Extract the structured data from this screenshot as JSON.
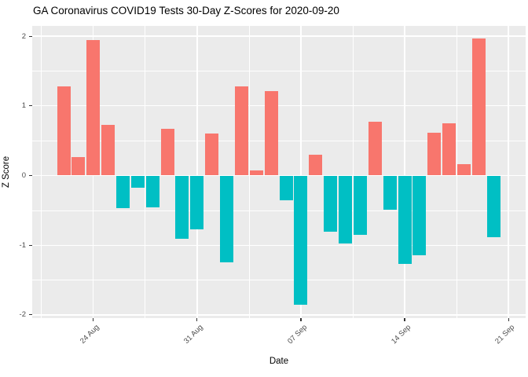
{
  "chart_data": {
    "type": "bar",
    "title": "GA Coronavirus COVID19 Tests 30-Day Z-Scores for 2020-09-20",
    "xlabel": "Date",
    "ylabel": "Z Score",
    "x": [
      "2020-08-22",
      "2020-08-23",
      "2020-08-24",
      "2020-08-25",
      "2020-08-26",
      "2020-08-27",
      "2020-08-28",
      "2020-08-29",
      "2020-08-30",
      "2020-08-31",
      "2020-09-01",
      "2020-09-02",
      "2020-09-03",
      "2020-09-04",
      "2020-09-05",
      "2020-09-06",
      "2020-09-07",
      "2020-09-08",
      "2020-09-09",
      "2020-09-10",
      "2020-09-11",
      "2020-09-12",
      "2020-09-13",
      "2020-09-14",
      "2020-09-15",
      "2020-09-16",
      "2020-09-17",
      "2020-09-18",
      "2020-09-19",
      "2020-09-20"
    ],
    "values": [
      1.28,
      0.27,
      1.95,
      0.73,
      -0.47,
      -0.18,
      -0.46,
      0.67,
      -0.91,
      -0.77,
      0.6,
      -1.25,
      1.28,
      0.07,
      1.21,
      -0.35,
      -1.86,
      0.3,
      -0.81,
      -0.98,
      -0.85,
      0.77,
      -0.49,
      -1.27,
      -1.14,
      0.62,
      0.75,
      0.16,
      1.97,
      -0.88
    ],
    "ylim": [
      -2,
      2
    ],
    "grid": true,
    "legend": "none",
    "y_axis": {
      "label": "Z Score",
      "tick_labels": [
        "2",
        "1",
        "0",
        "-1",
        "-2"
      ],
      "tick_values": [
        2,
        1,
        0,
        -1,
        -2
      ],
      "minor_values": [
        1.5,
        0.5,
        -0.5,
        -1.5
      ]
    },
    "x_axis": {
      "label": "Date",
      "tick_labels": [
        "24 Aug",
        "31 Aug",
        "07 Sep",
        "14 Sep",
        "21 Sep"
      ],
      "tick_days": [
        2,
        9,
        16,
        23,
        30
      ],
      "minor_days": [
        -1.5,
        5.5,
        12.5,
        19.5,
        26.5
      ]
    },
    "colors": {
      "positive_bar": "#F8766D",
      "negative_bar": "#00BFC4",
      "panel_background": "#EBEBEB",
      "gridline": "#FFFFFF",
      "axis_text": "#4D4D4D",
      "tick_mark": "#333333",
      "title_text": "#000000"
    }
  }
}
